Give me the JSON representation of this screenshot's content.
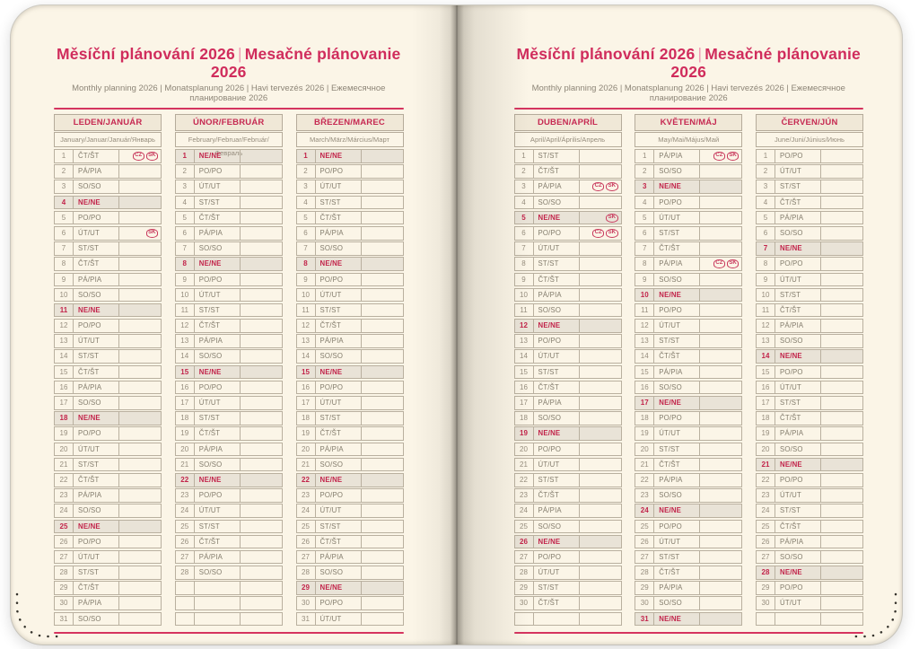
{
  "titles": {
    "main": "Měsíční plánování 2026",
    "divider": "|",
    "secondary": "Mesačné plánovanie 2026",
    "subtitle": "Monthly planning 2026 | Monatsplanung 2026 | Havi tervezés 2026 | Ежемесячное планирование 2026"
  },
  "weekday_labels": [
    "PO/PO",
    "ÚT/UT",
    "ST/ST",
    "ČT/ŠT",
    "PÁ/PIA",
    "SO/SO",
    "NE/NE"
  ],
  "sunday_label": "NE/NE",
  "holiday_badges": [
    "CZ",
    "SK"
  ],
  "colors": {
    "accent_red": "#d02c5c",
    "month_header_red": "#c62a52",
    "sunday_red": "#c2244a",
    "sunday_row_bg": "#e9e3d7",
    "table_border": "#b9b09f",
    "header_fill": "#f0e8d7",
    "page_bg": "#fbf5e7",
    "muted_text": "#8d8577",
    "rule_red": "#d5345f"
  },
  "pages": [
    {
      "side": "left",
      "months": [
        {
          "name": "LEDEN/JANUÁR",
          "languages": "January/Januar/Január/Январь",
          "trailing_empty_rows": 0,
          "days": [
            [
              1,
              "ČT/ŠT",
              [
                "CZ",
                "SK"
              ]
            ],
            [
              2,
              "PÁ/PIA"
            ],
            [
              3,
              "SO/SO"
            ],
            [
              4,
              "NE/NE"
            ],
            [
              5,
              "PO/PO"
            ],
            [
              6,
              "ÚT/UT",
              [
                "SK"
              ]
            ],
            [
              7,
              "ST/ST"
            ],
            [
              8,
              "ČT/ŠT"
            ],
            [
              9,
              "PÁ/PIA"
            ],
            [
              10,
              "SO/SO"
            ],
            [
              11,
              "NE/NE"
            ],
            [
              12,
              "PO/PO"
            ],
            [
              13,
              "ÚT/UT"
            ],
            [
              14,
              "ST/ST"
            ],
            [
              15,
              "ČT/ŠT"
            ],
            [
              16,
              "PÁ/PIA"
            ],
            [
              17,
              "SO/SO"
            ],
            [
              18,
              "NE/NE"
            ],
            [
              19,
              "PO/PO"
            ],
            [
              20,
              "ÚT/UT"
            ],
            [
              21,
              "ST/ST"
            ],
            [
              22,
              "ČT/ŠT"
            ],
            [
              23,
              "PÁ/PIA"
            ],
            [
              24,
              "SO/SO"
            ],
            [
              25,
              "NE/NE"
            ],
            [
              26,
              "PO/PO"
            ],
            [
              27,
              "ÚT/UT"
            ],
            [
              28,
              "ST/ST"
            ],
            [
              29,
              "ČT/ŠT"
            ],
            [
              30,
              "PÁ/PIA"
            ],
            [
              31,
              "SO/SO"
            ]
          ]
        },
        {
          "name": "ÚNOR/FEBRUÁR",
          "languages": "February/Februar/Február/Февраль",
          "trailing_empty_rows": 3,
          "days": [
            [
              1,
              "NE/NE"
            ],
            [
              2,
              "PO/PO"
            ],
            [
              3,
              "ÚT/UT"
            ],
            [
              4,
              "ST/ST"
            ],
            [
              5,
              "ČT/ŠT"
            ],
            [
              6,
              "PÁ/PIA"
            ],
            [
              7,
              "SO/SO"
            ],
            [
              8,
              "NE/NE"
            ],
            [
              9,
              "PO/PO"
            ],
            [
              10,
              "ÚT/UT"
            ],
            [
              11,
              "ST/ST"
            ],
            [
              12,
              "ČT/ŠT"
            ],
            [
              13,
              "PÁ/PIA"
            ],
            [
              14,
              "SO/SO"
            ],
            [
              15,
              "NE/NE"
            ],
            [
              16,
              "PO/PO"
            ],
            [
              17,
              "ÚT/UT"
            ],
            [
              18,
              "ST/ST"
            ],
            [
              19,
              "ČT/ŠT"
            ],
            [
              20,
              "PÁ/PIA"
            ],
            [
              21,
              "SO/SO"
            ],
            [
              22,
              "NE/NE"
            ],
            [
              23,
              "PO/PO"
            ],
            [
              24,
              "ÚT/UT"
            ],
            [
              25,
              "ST/ST"
            ],
            [
              26,
              "ČT/ŠT"
            ],
            [
              27,
              "PÁ/PIA"
            ],
            [
              28,
              "SO/SO"
            ]
          ]
        },
        {
          "name": "BŘEZEN/MAREC",
          "languages": "March/März/Március/Март",
          "trailing_empty_rows": 0,
          "days": [
            [
              1,
              "NE/NE"
            ],
            [
              2,
              "PO/PO"
            ],
            [
              3,
              "ÚT/UT"
            ],
            [
              4,
              "ST/ST"
            ],
            [
              5,
              "ČT/ŠT"
            ],
            [
              6,
              "PÁ/PIA"
            ],
            [
              7,
              "SO/SO"
            ],
            [
              8,
              "NE/NE"
            ],
            [
              9,
              "PO/PO"
            ],
            [
              10,
              "ÚT/UT"
            ],
            [
              11,
              "ST/ST"
            ],
            [
              12,
              "ČT/ŠT"
            ],
            [
              13,
              "PÁ/PIA"
            ],
            [
              14,
              "SO/SO"
            ],
            [
              15,
              "NE/NE"
            ],
            [
              16,
              "PO/PO"
            ],
            [
              17,
              "ÚT/UT"
            ],
            [
              18,
              "ST/ST"
            ],
            [
              19,
              "ČT/ŠT"
            ],
            [
              20,
              "PÁ/PIA"
            ],
            [
              21,
              "SO/SO"
            ],
            [
              22,
              "NE/NE"
            ],
            [
              23,
              "PO/PO"
            ],
            [
              24,
              "ÚT/UT"
            ],
            [
              25,
              "ST/ST"
            ],
            [
              26,
              "ČT/ŠT"
            ],
            [
              27,
              "PÁ/PIA"
            ],
            [
              28,
              "SO/SO"
            ],
            [
              29,
              "NE/NE"
            ],
            [
              30,
              "PO/PO"
            ],
            [
              31,
              "ÚT/UT"
            ]
          ]
        }
      ]
    },
    {
      "side": "right",
      "months": [
        {
          "name": "DUBEN/APRÍL",
          "languages": "April/April/Április/Апрель",
          "trailing_empty_rows": 1,
          "days": [
            [
              1,
              "ST/ST"
            ],
            [
              2,
              "ČT/ŠT"
            ],
            [
              3,
              "PÁ/PIA",
              [
                "CZ",
                "SK"
              ]
            ],
            [
              4,
              "SO/SO"
            ],
            [
              5,
              "NE/NE",
              [
                "SK"
              ]
            ],
            [
              6,
              "PO/PO",
              [
                "CZ",
                "SK"
              ]
            ],
            [
              7,
              "ÚT/UT"
            ],
            [
              8,
              "ST/ST"
            ],
            [
              9,
              "ČT/ŠT"
            ],
            [
              10,
              "PÁ/PIA"
            ],
            [
              11,
              "SO/SO"
            ],
            [
              12,
              "NE/NE"
            ],
            [
              13,
              "PO/PO"
            ],
            [
              14,
              "ÚT/UT"
            ],
            [
              15,
              "ST/ST"
            ],
            [
              16,
              "ČT/ŠT"
            ],
            [
              17,
              "PÁ/PIA"
            ],
            [
              18,
              "SO/SO"
            ],
            [
              19,
              "NE/NE"
            ],
            [
              20,
              "PO/PO"
            ],
            [
              21,
              "ÚT/UT"
            ],
            [
              22,
              "ST/ST"
            ],
            [
              23,
              "ČT/ŠT"
            ],
            [
              24,
              "PÁ/PIA"
            ],
            [
              25,
              "SO/SO"
            ],
            [
              26,
              "NE/NE"
            ],
            [
              27,
              "PO/PO"
            ],
            [
              28,
              "ÚT/UT"
            ],
            [
              29,
              "ST/ST"
            ],
            [
              30,
              "ČT/ŠT"
            ]
          ]
        },
        {
          "name": "KVĚTEN/MÁJ",
          "languages": "May/Mai/Május/Май",
          "trailing_empty_rows": 0,
          "days": [
            [
              1,
              "PÁ/PIA",
              [
                "CZ",
                "SK"
              ]
            ],
            [
              2,
              "SO/SO"
            ],
            [
              3,
              "NE/NE"
            ],
            [
              4,
              "PO/PO"
            ],
            [
              5,
              "ÚT/UT"
            ],
            [
              6,
              "ST/ST"
            ],
            [
              7,
              "ČT/ŠT"
            ],
            [
              8,
              "PÁ/PIA",
              [
                "CZ",
                "SK"
              ]
            ],
            [
              9,
              "SO/SO"
            ],
            [
              10,
              "NE/NE"
            ],
            [
              11,
              "PO/PO"
            ],
            [
              12,
              "ÚT/UT"
            ],
            [
              13,
              "ST/ST"
            ],
            [
              14,
              "ČT/ŠT"
            ],
            [
              15,
              "PÁ/PIA"
            ],
            [
              16,
              "SO/SO"
            ],
            [
              17,
              "NE/NE"
            ],
            [
              18,
              "PO/PO"
            ],
            [
              19,
              "ÚT/UT"
            ],
            [
              20,
              "ST/ST"
            ],
            [
              21,
              "ČT/ŠT"
            ],
            [
              22,
              "PÁ/PIA"
            ],
            [
              23,
              "SO/SO"
            ],
            [
              24,
              "NE/NE"
            ],
            [
              25,
              "PO/PO"
            ],
            [
              26,
              "ÚT/UT"
            ],
            [
              27,
              "ST/ST"
            ],
            [
              28,
              "ČT/ŠT"
            ],
            [
              29,
              "PÁ/PIA"
            ],
            [
              30,
              "SO/SO"
            ],
            [
              31,
              "NE/NE"
            ]
          ]
        },
        {
          "name": "ČERVEN/JÚN",
          "languages": "June/Juni/Június/Июнь",
          "trailing_empty_rows": 1,
          "days": [
            [
              1,
              "PO/PO"
            ],
            [
              2,
              "ÚT/UT"
            ],
            [
              3,
              "ST/ST"
            ],
            [
              4,
              "ČT/ŠT"
            ],
            [
              5,
              "PÁ/PIA"
            ],
            [
              6,
              "SO/SO"
            ],
            [
              7,
              "NE/NE"
            ],
            [
              8,
              "PO/PO"
            ],
            [
              9,
              "ÚT/UT"
            ],
            [
              10,
              "ST/ST"
            ],
            [
              11,
              "ČT/ŠT"
            ],
            [
              12,
              "PÁ/PIA"
            ],
            [
              13,
              "SO/SO"
            ],
            [
              14,
              "NE/NE"
            ],
            [
              15,
              "PO/PO"
            ],
            [
              16,
              "ÚT/UT"
            ],
            [
              17,
              "ST/ST"
            ],
            [
              18,
              "ČT/ŠT"
            ],
            [
              19,
              "PÁ/PIA"
            ],
            [
              20,
              "SO/SO"
            ],
            [
              21,
              "NE/NE"
            ],
            [
              22,
              "PO/PO"
            ],
            [
              23,
              "ÚT/UT"
            ],
            [
              24,
              "ST/ST"
            ],
            [
              25,
              "ČT/ŠT"
            ],
            [
              26,
              "PÁ/PIA"
            ],
            [
              27,
              "SO/SO"
            ],
            [
              28,
              "NE/NE"
            ],
            [
              29,
              "PO/PO"
            ],
            [
              30,
              "ÚT/UT"
            ]
          ]
        }
      ]
    }
  ]
}
